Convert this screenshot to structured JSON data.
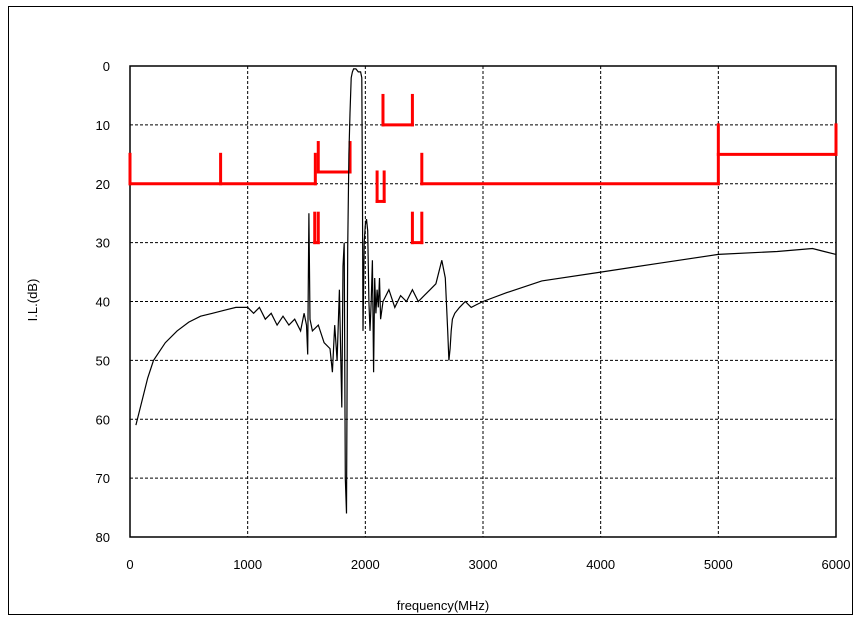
{
  "chart_data": {
    "type": "line",
    "title": "",
    "xlabel": "frequency(MHz)",
    "ylabel": "I.L.(dB)",
    "xlim": [
      0,
      6000
    ],
    "ylim": [
      0,
      80
    ],
    "y_inverted": true,
    "grid": true,
    "x_ticks": [
      "0",
      "1000",
      "2000",
      "3000",
      "4000",
      "5000",
      "6000"
    ],
    "y_ticks": [
      "0",
      "10",
      "20",
      "30",
      "40",
      "50",
      "60",
      "70",
      "80"
    ],
    "colors": {
      "measured": "#000000",
      "mask": "#ff0000",
      "grid": "#000000"
    },
    "series": [
      {
        "key": "measured",
        "x": [
          50,
          100,
          150,
          200,
          300,
          400,
          500,
          600,
          700,
          800,
          900,
          1000,
          1050,
          1100,
          1150,
          1200,
          1250,
          1300,
          1350,
          1400,
          1450,
          1480,
          1500,
          1510,
          1520,
          1530,
          1550,
          1600,
          1650,
          1700,
          1720,
          1740,
          1760,
          1780,
          1800,
          1810,
          1820,
          1830,
          1840,
          1850,
          1860,
          1870,
          1880,
          1890,
          1900,
          1920,
          1940,
          1960,
          1970,
          1975,
          1980,
          1990,
          2000,
          2010,
          2020,
          2030,
          2040,
          2050,
          2060,
          2070,
          2080,
          2090,
          2100,
          2110,
          2120,
          2130,
          2150,
          2200,
          2250,
          2300,
          2350,
          2400,
          2450,
          2500,
          2550,
          2600,
          2650,
          2680,
          2700,
          2710,
          2720,
          2730,
          2740,
          2760,
          2800,
          2850,
          2900,
          2950,
          3000,
          3200,
          3500,
          4000,
          4500,
          5000,
          5500,
          5800,
          5900,
          6000
        ],
        "y": [
          61,
          57,
          53,
          50,
          47,
          45,
          43.5,
          42.5,
          42,
          41.5,
          41,
          41,
          42,
          41,
          43,
          42,
          44,
          42.5,
          44,
          43,
          45,
          42,
          44,
          49,
          25,
          43,
          45,
          44,
          47,
          48,
          52,
          44,
          50,
          38,
          58,
          34,
          30,
          70,
          76,
          31,
          15,
          8,
          2,
          1,
          0.5,
          0.5,
          1,
          1,
          2,
          20,
          45,
          30,
          27,
          26,
          28,
          40,
          45,
          40,
          33,
          52,
          36,
          42,
          38,
          41,
          36,
          43,
          40,
          38,
          41,
          39,
          40,
          38,
          40,
          39,
          38,
          37,
          33,
          36,
          45,
          50,
          48,
          45,
          43,
          42,
          41,
          40,
          41,
          40.5,
          40,
          38.5,
          36.5,
          35,
          33.5,
          32,
          31.5,
          31,
          31.5,
          32
        ]
      },
      {
        "key": "mask",
        "x": [
          0,
          0,
          0,
          770,
          770,
          770,
          1570,
          1570,
          1600,
          1600,
          1600,
          1860,
          1860,
          1860
        ],
        "y": [
          15,
          20,
          20,
          20,
          15,
          20,
          20,
          15,
          13,
          18,
          18,
          18,
          13,
          18
        ],
        "segments": [
          {
            "x": [
              0,
              0
            ],
            "y": [
              15,
              20
            ]
          },
          {
            "x": [
              0,
              1575
            ],
            "y": [
              20,
              20
            ]
          },
          {
            "x": [
              770,
              770
            ],
            "y": [
              15,
              20
            ]
          },
          {
            "x": [
              1575,
              1575
            ],
            "y": [
              15,
              20
            ]
          },
          {
            "x": [
              1600,
              1600
            ],
            "y": [
              13,
              18
            ]
          },
          {
            "x": [
              1600,
              1870
            ],
            "y": [
              18,
              18
            ]
          },
          {
            "x": [
              1870,
              1870
            ],
            "y": [
              13,
              18
            ]
          },
          {
            "x": [
              1570,
              1570
            ],
            "y": [
              25,
              30
            ]
          },
          {
            "x": [
              1600,
              1600
            ],
            "y": [
              25,
              30
            ]
          },
          {
            "x": [
              1570,
              1600
            ],
            "y": [
              30,
              30
            ]
          },
          {
            "x": [
              2100,
              2100
            ],
            "y": [
              18,
              23
            ]
          },
          {
            "x": [
              2100,
              2160
            ],
            "y": [
              23,
              23
            ]
          },
          {
            "x": [
              2160,
              2160
            ],
            "y": [
              18,
              23
            ]
          },
          {
            "x": [
              2150,
              2150
            ],
            "y": [
              5,
              10
            ]
          },
          {
            "x": [
              2150,
              2400
            ],
            "y": [
              10,
              10
            ]
          },
          {
            "x": [
              2400,
              2400
            ],
            "y": [
              5,
              10
            ]
          },
          {
            "x": [
              2400,
              2400
            ],
            "y": [
              25,
              30
            ]
          },
          {
            "x": [
              2400,
              2480
            ],
            "y": [
              30,
              30
            ]
          },
          {
            "x": [
              2480,
              2480
            ],
            "y": [
              25,
              30
            ]
          },
          {
            "x": [
              2480,
              2480
            ],
            "y": [
              15,
              20
            ]
          },
          {
            "x": [
              2480,
              5000
            ],
            "y": [
              20,
              20
            ]
          },
          {
            "x": [
              5000,
              5000
            ],
            "y": [
              10,
              20
            ]
          },
          {
            "x": [
              5000,
              6000
            ],
            "y": [
              15,
              15
            ]
          },
          {
            "x": [
              6000,
              6000
            ],
            "y": [
              10,
              15
            ]
          }
        ]
      }
    ]
  }
}
